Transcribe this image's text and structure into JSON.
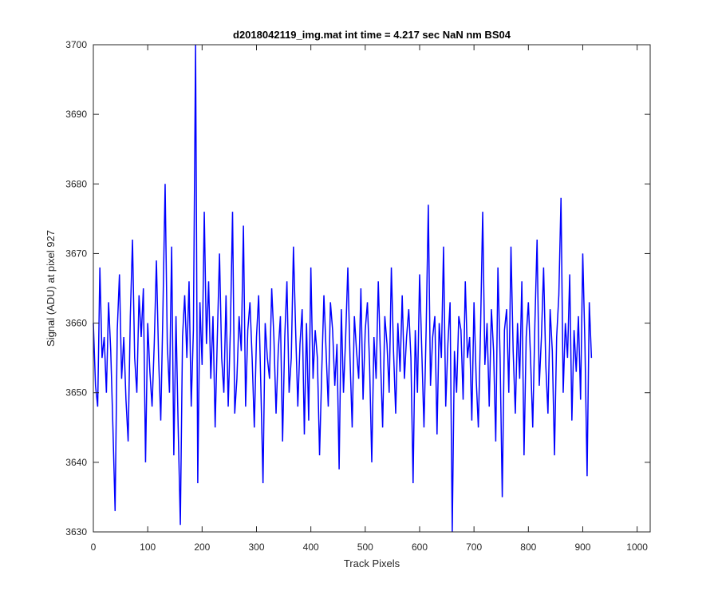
{
  "chart_data": {
    "type": "line",
    "title": "d2018042119_img.mat int time = 4.217 sec  NaN nm BS04",
    "xlabel": "Track Pixels",
    "ylabel": "Signal (ADU) at pixel 927",
    "xlim": [
      0,
      1024
    ],
    "ylim": [
      3630,
      3700
    ],
    "xticks": [
      0,
      100,
      200,
      300,
      400,
      500,
      600,
      700,
      800,
      900,
      1000
    ],
    "yticks": [
      3630,
      3640,
      3650,
      3660,
      3670,
      3680,
      3690,
      3700
    ],
    "grid": false,
    "line_color": "#0000ff",
    "series": [
      {
        "x_start": 0,
        "x_step": 4,
        "values": [
          3660,
          3651,
          3648,
          3668,
          3655,
          3658,
          3650,
          3663,
          3656,
          3645,
          3633,
          3659,
          3667,
          3652,
          3658,
          3649,
          3643,
          3661,
          3672,
          3655,
          3650,
          3664,
          3658,
          3665,
          3640,
          3660,
          3653,
          3648,
          3657,
          3669,
          3655,
          3646,
          3662,
          3680,
          3657,
          3650,
          3671,
          3641,
          3661,
          3645,
          3631,
          3658,
          3664,
          3655,
          3666,
          3648,
          3659,
          3700,
          3637,
          3663,
          3654,
          3676,
          3657,
          3666,
          3652,
          3661,
          3645,
          3658,
          3670,
          3655,
          3650,
          3664,
          3648,
          3659,
          3676,
          3647,
          3652,
          3661,
          3656,
          3674,
          3648,
          3659,
          3663,
          3655,
          3645,
          3658,
          3664,
          3651,
          3637,
          3660,
          3655,
          3652,
          3665,
          3658,
          3647,
          3656,
          3661,
          3643,
          3658,
          3666,
          3650,
          3655,
          3671,
          3659,
          3648,
          3657,
          3662,
          3644,
          3660,
          3646,
          3668,
          3652,
          3659,
          3655,
          3641,
          3653,
          3664,
          3656,
          3648,
          3663,
          3659,
          3651,
          3657,
          3639,
          3662,
          3650,
          3658,
          3668,
          3655,
          3645,
          3661,
          3656,
          3652,
          3665,
          3649,
          3659,
          3663,
          3654,
          3640,
          3658,
          3652,
          3666,
          3655,
          3645,
          3661,
          3657,
          3650,
          3668,
          3656,
          3647,
          3660,
          3653,
          3664,
          3652,
          3658,
          3662,
          3655,
          3637,
          3659,
          3650,
          3667,
          3656,
          3645,
          3659,
          3677,
          3651,
          3658,
          3661,
          3644,
          3660,
          3655,
          3671,
          3648,
          3657,
          3663,
          3630,
          3656,
          3650,
          3661,
          3659,
          3649,
          3666,
          3655,
          3658,
          3646,
          3663,
          3652,
          3645,
          3659,
          3676,
          3654,
          3660,
          3648,
          3662,
          3656,
          3643,
          3668,
          3655,
          3635,
          3659,
          3662,
          3650,
          3671,
          3656,
          3647,
          3660,
          3652,
          3666,
          3641,
          3658,
          3663,
          3655,
          3645,
          3660,
          3672,
          3651,
          3658,
          3668,
          3654,
          3647,
          3662,
          3656,
          3641,
          3658,
          3664,
          3678,
          3650,
          3660,
          3655,
          3667,
          3646,
          3659,
          3653,
          3661,
          3649,
          3670,
          3657,
          3638,
          3663,
          3655
        ]
      }
    ]
  }
}
